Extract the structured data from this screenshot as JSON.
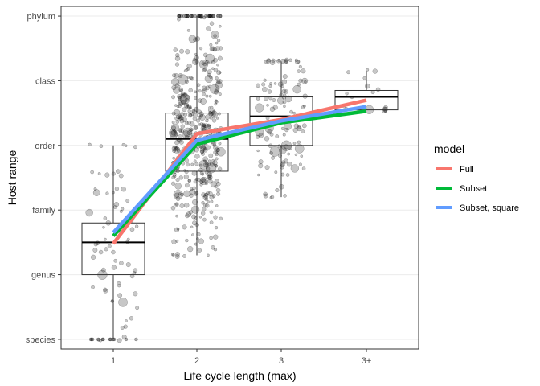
{
  "chart_data": {
    "type": "box",
    "xlabel": "Life cycle length (max)",
    "ylabel": "Host range",
    "categories": [
      "1",
      "2",
      "3",
      "3+"
    ],
    "y_levels": [
      "species",
      "genus",
      "family",
      "order",
      "class",
      "phylum"
    ],
    "y_range": [
      -0.15,
      5.15
    ],
    "grid": true,
    "legend": {
      "title": "model",
      "position": "right",
      "entries": [
        {
          "name": "Full",
          "color": "#F8766D"
        },
        {
          "name": "Subset",
          "color": "#00BA38"
        },
        {
          "name": "Subset, square",
          "color": "#619CFF"
        }
      ]
    },
    "boxes": [
      {
        "category": "1",
        "q1": 1.0,
        "median": 1.5,
        "q3": 1.8,
        "whisker_low": 0.0,
        "whisker_high": 3.0
      },
      {
        "category": "2",
        "q1": 2.6,
        "median": 3.1,
        "q3": 3.5,
        "whisker_low": 1.3,
        "whisker_high": 5.0
      },
      {
        "category": "3",
        "q1": 3.0,
        "median": 3.45,
        "q3": 3.75,
        "whisker_low": 2.2,
        "whisker_high": 4.3
      },
      {
        "category": "3+",
        "q1": 3.55,
        "median": 3.75,
        "q3": 3.85,
        "whisker_low": 3.55,
        "whisker_high": 4.15
      }
    ],
    "series": [
      {
        "name": "Full",
        "color": "#F8766D",
        "values": [
          1.48,
          3.18,
          3.4,
          3.7
        ]
      },
      {
        "name": "Subset",
        "color": "#00BA38",
        "values": [
          1.6,
          3.02,
          3.35,
          3.53
        ]
      },
      {
        "name": "Subset, square",
        "color": "#619CFF",
        "values": [
          1.65,
          3.08,
          3.38,
          3.6
        ]
      }
    ]
  }
}
